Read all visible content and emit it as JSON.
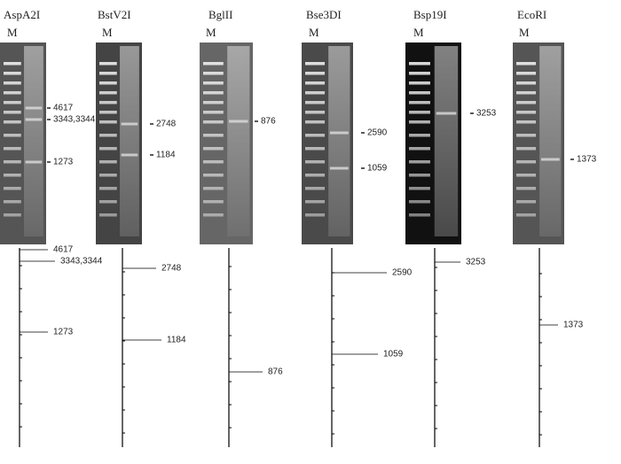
{
  "panels": [
    {
      "enzyme": "AspA2I",
      "marker": "M",
      "gel_labels": [
        "4617",
        "3343,3344",
        "1273"
      ],
      "sim_labels": [
        "4617",
        "3343,3344",
        "1273"
      ]
    },
    {
      "enzyme": "BstV2I",
      "marker": "M",
      "gel_labels": [
        "2748",
        "1184"
      ],
      "sim_labels": [
        "2748",
        "1184"
      ]
    },
    {
      "enzyme": "BglII",
      "marker": "M",
      "gel_labels": [
        "876"
      ],
      "sim_labels": [
        "876"
      ]
    },
    {
      "enzyme": "Bse3DI",
      "marker": "M",
      "gel_labels": [
        "2590",
        "1059"
      ],
      "sim_labels": [
        "2590",
        "1059"
      ]
    },
    {
      "enzyme": "Bsp19I",
      "marker": "M",
      "gel_labels": [
        "3253"
      ],
      "sim_labels": [
        "3253"
      ]
    },
    {
      "enzyme": "EcoRI",
      "marker": "M",
      "gel_labels": [
        "1373"
      ],
      "sim_labels": [
        "1373"
      ]
    }
  ]
}
